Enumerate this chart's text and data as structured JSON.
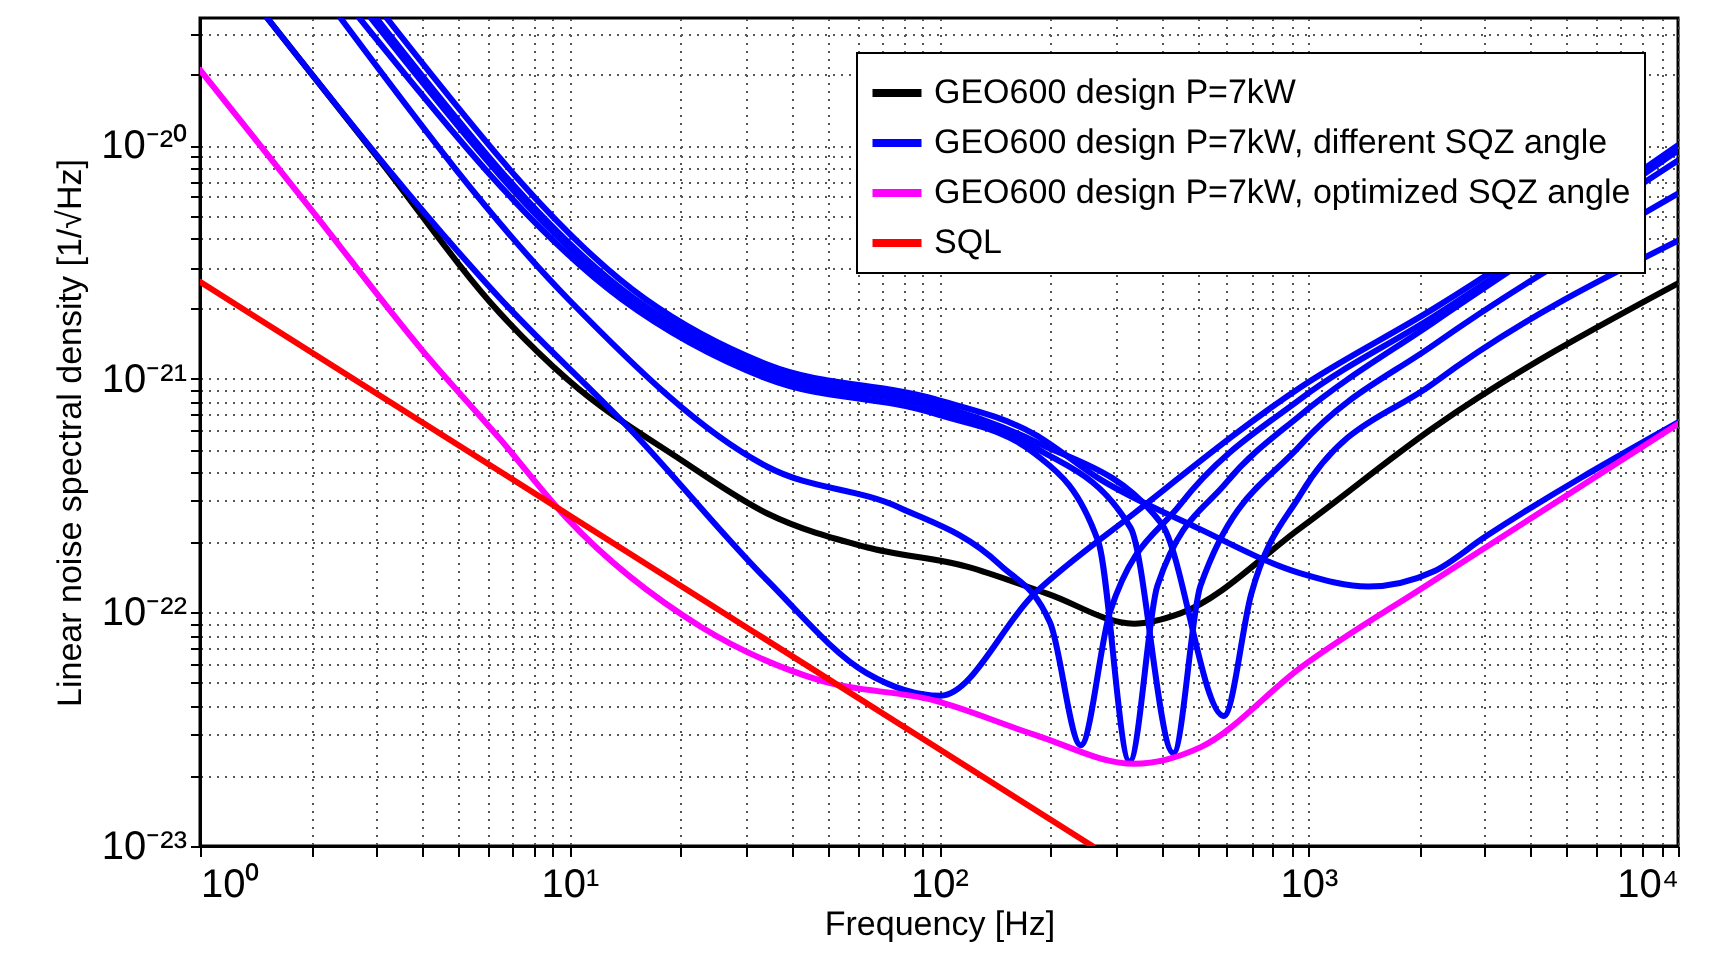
{
  "chart_data": {
    "type": "line",
    "xlabel": "Frequency  [Hz]",
    "ylabel": "Linear noise spectral density  [1/√Hz]",
    "log": "xy",
    "grid": true,
    "legend": "top right",
    "line_style": "solid",
    "marker": "none",
    "xlim": [
      1,
      10000
    ],
    "ylim": [
      1e-23,
      3.5e-20
    ],
    "xticks": [
      {
        "value": 1,
        "label": "10⁰"
      },
      {
        "value": 2,
        "label": null
      },
      {
        "value": 3,
        "label": null
      },
      {
        "value": 4,
        "label": null
      },
      {
        "value": 5,
        "label": null
      },
      {
        "value": 6,
        "label": null
      },
      {
        "value": 7,
        "label": null
      },
      {
        "value": 8,
        "label": null
      },
      {
        "value": 9,
        "label": null
      },
      {
        "value": 10,
        "label": "10¹"
      },
      {
        "value": 20,
        "label": null
      },
      {
        "value": 30,
        "label": null
      },
      {
        "value": 40,
        "label": null
      },
      {
        "value": 50,
        "label": null
      },
      {
        "value": 60,
        "label": null
      },
      {
        "value": 70,
        "label": null
      },
      {
        "value": 80,
        "label": null
      },
      {
        "value": 90,
        "label": null
      },
      {
        "value": 100,
        "label": "10²"
      },
      {
        "value": 200,
        "label": null
      },
      {
        "value": 300,
        "label": null
      },
      {
        "value": 400,
        "label": null
      },
      {
        "value": 500,
        "label": null
      },
      {
        "value": 600,
        "label": null
      },
      {
        "value": 700,
        "label": null
      },
      {
        "value": 800,
        "label": null
      },
      {
        "value": 900,
        "label": null
      },
      {
        "value": 1000,
        "label": "10³"
      },
      {
        "value": 2000,
        "label": null
      },
      {
        "value": 3000,
        "label": null
      },
      {
        "value": 4000,
        "label": null
      },
      {
        "value": 5000,
        "label": null
      },
      {
        "value": 6000,
        "label": null
      },
      {
        "value": 7000,
        "label": null
      },
      {
        "value": 8000,
        "label": null
      },
      {
        "value": 9000,
        "label": null
      },
      {
        "value": 10000,
        "label": "10⁴"
      }
    ],
    "yticks": [
      {
        "value": 1e-23,
        "label": "10⁻²³"
      },
      {
        "value": 2e-23,
        "label": null
      },
      {
        "value": 3e-23,
        "label": null
      },
      {
        "value": 4e-23,
        "label": null
      },
      {
        "value": 5e-23,
        "label": null
      },
      {
        "value": 6e-23,
        "label": null
      },
      {
        "value": 7e-23,
        "label": null
      },
      {
        "value": 8e-23,
        "label": null
      },
      {
        "value": 9e-23,
        "label": null
      },
      {
        "value": 1e-22,
        "label": "10⁻²²"
      },
      {
        "value": 2e-22,
        "label": null
      },
      {
        "value": 3e-22,
        "label": null
      },
      {
        "value": 4e-22,
        "label": null
      },
      {
        "value": 5e-22,
        "label": null
      },
      {
        "value": 6e-22,
        "label": null
      },
      {
        "value": 7e-22,
        "label": null
      },
      {
        "value": 8e-22,
        "label": null
      },
      {
        "value": 9e-22,
        "label": null
      },
      {
        "value": 1e-21,
        "label": "10⁻²¹"
      },
      {
        "value": 2e-21,
        "label": null
      },
      {
        "value": 3e-21,
        "label": null
      },
      {
        "value": 4e-21,
        "label": null
      },
      {
        "value": 5e-21,
        "label": null
      },
      {
        "value": 6e-21,
        "label": null
      },
      {
        "value": 7e-21,
        "label": null
      },
      {
        "value": 8e-21,
        "label": null
      },
      {
        "value": 9e-21,
        "label": null
      },
      {
        "value": 1e-20,
        "label": "10⁻²⁰"
      },
      {
        "value": 2e-20,
        "label": null
      },
      {
        "value": 3e-20,
        "label": null
      }
    ],
    "series": [
      {
        "name": "GEO600 design P=7kW",
        "color": "#000000",
        "x": [
          1.52,
          3,
          6.5,
          9.9,
          20,
          34.3,
          63.7,
          119,
          197,
          337,
          450,
          952,
          2187,
          10000
        ],
        "values": [
          3.5e-20,
          9e-21,
          1.9e-21,
          9.9e-22,
          4.5e-22,
          2.65e-22,
          1.9e-22,
          1.57e-22,
          1.2e-22,
          8.95e-23,
          9.9e-23,
          2.3e-22,
          6.2e-22,
          2.56e-21
        ]
      },
      {
        "name": "GEO600 design P=7kW, different SQZ angle",
        "color": "#0000ff",
        "x": [
          1.52,
          6.5,
          15,
          34.3,
          63.7,
          101,
          181,
          337,
          952,
          2187,
          10000
        ],
        "values": [
          3.5e-20,
          2.2e-21,
          5.8e-22,
          1.37e-22,
          5.5e-23,
          4.4e-23,
          1.2e-22,
          2.65e-22,
          9.2e-22,
          2e-21,
          1e-20
        ]
      },
      {
        "color": "#0000ff",
        "x": [
          2.4,
          9.9,
          34.3,
          78.5,
          146,
          200,
          242,
          290,
          450,
          952,
          2187,
          10000
        ],
        "values": [
          3.5e-20,
          2.2e-21,
          4.2e-22,
          2.8e-22,
          1.6e-22,
          9e-23,
          2.7e-23,
          1e-22,
          2.9e-22,
          8.2e-22,
          1.85e-21,
          9.5e-21
        ]
      },
      {
        "color": "#0000ff",
        "x": [
          2.7,
          13.8,
          34.3,
          97,
          181,
          270,
          328,
          390,
          600,
          952,
          2187,
          10000
        ],
        "values": [
          3.5e-20,
          2.2e-21,
          1e-21,
          7.1e-22,
          4.8e-22,
          2e-22,
          2.3e-23,
          1.3e-22,
          3.6e-22,
          7e-22,
          1.75e-21,
          8.6e-21
        ]
      },
      {
        "color": "#0000ff",
        "x": [
          2.9,
          14.5,
          34.3,
          97,
          181,
          330,
          431,
          510,
          952,
          2187,
          10000
        ],
        "values": [
          3.5e-20,
          2.2e-21,
          1.05e-21,
          7.5e-22,
          5.1e-22,
          2.3e-22,
          2.5e-23,
          1.3e-22,
          5.2e-22,
          1.4e-21,
          6.2e-21
        ]
      },
      {
        "color": "#0000ff",
        "x": [
          3.0,
          15,
          34.3,
          97,
          181,
          400,
          590,
          700,
          952,
          2187,
          10000
        ],
        "values": [
          3.5e-20,
          2.2e-21,
          1.1e-21,
          7.8e-22,
          5.4e-22,
          2.4e-22,
          3.6e-23,
          1.2e-22,
          3.2e-22,
          9.6e-22,
          3.9e-21
        ]
      },
      {
        "color": "#0000ff",
        "x": [
          3.2,
          16,
          34.3,
          97,
          181,
          274,
          500,
          952,
          1450,
          2187,
          3000,
          10000
        ],
        "values": [
          3.5e-20,
          2.2e-21,
          1.15e-21,
          8.2e-22,
          5.8e-22,
          3.7e-22,
          2.3e-22,
          1.47e-22,
          1.29e-22,
          1.5e-22,
          2.1e-22,
          6.5e-22
        ]
      },
      {
        "name": "GEO600 design P=7kW, optimized SQZ angle",
        "color": "#ff00ff",
        "x": [
          1,
          2,
          4,
          6.5,
          9.9,
          22.6,
          47.9,
          97,
          181,
          337,
          511,
          952,
          2187,
          10000
        ],
        "values": [
          2.1e-20,
          5.3e-21,
          1.32e-21,
          5.5e-22,
          2.5e-22,
          8.7e-23,
          5.1e-23,
          4.2e-23,
          3e-23,
          2.25e-23,
          2.65e-23,
          5.8e-23,
          1.37e-22,
          6.4e-22
        ]
      },
      {
        "name": "SQL",
        "color": "#ff0000",
        "x": [
          1,
          10,
          100,
          260
        ],
        "values": [
          2.6e-21,
          2.6e-22,
          2.6e-23,
          1e-23
        ]
      }
    ]
  }
}
